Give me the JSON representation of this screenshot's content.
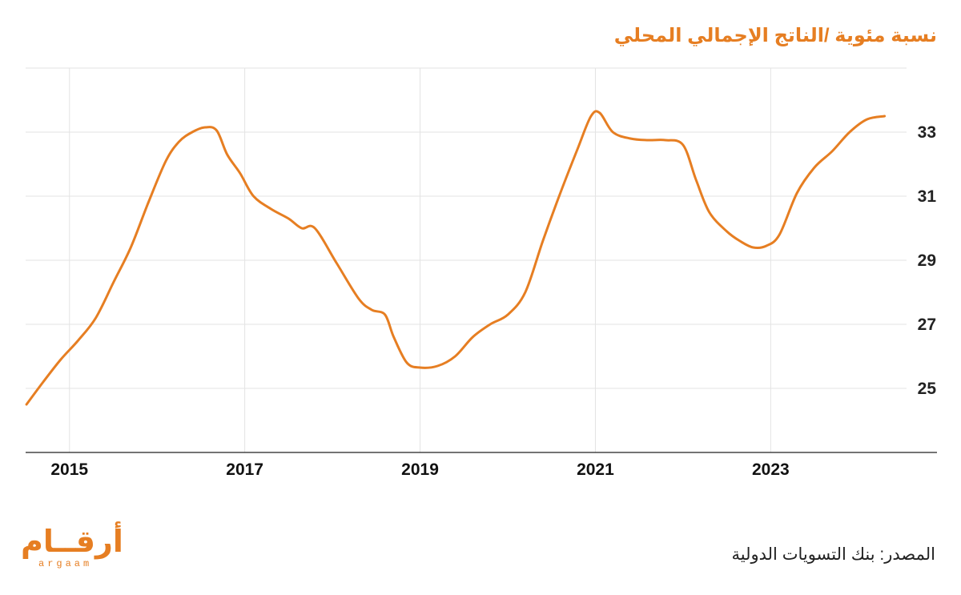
{
  "chart_data": {
    "type": "line",
    "title": "نسبة مئوية /الناتج الإجمالي المحلي",
    "series": [
      {
        "color": "#e67e22",
        "points": [
          [
            2014.51,
            24.5
          ],
          [
            2014.7,
            25.2
          ],
          [
            2014.9,
            25.9
          ],
          [
            2015.1,
            26.5
          ],
          [
            2015.3,
            27.2
          ],
          [
            2015.5,
            28.3
          ],
          [
            2015.7,
            29.4
          ],
          [
            2015.9,
            30.8
          ],
          [
            2016.1,
            32.1
          ],
          [
            2016.25,
            32.7
          ],
          [
            2016.4,
            33.0
          ],
          [
            2016.55,
            33.15
          ],
          [
            2016.68,
            33.05
          ],
          [
            2016.8,
            32.3
          ],
          [
            2016.95,
            31.7
          ],
          [
            2017.1,
            31.0
          ],
          [
            2017.3,
            30.6
          ],
          [
            2017.5,
            30.3
          ],
          [
            2017.65,
            30.0
          ],
          [
            2017.8,
            30.0
          ],
          [
            2018.05,
            28.9
          ],
          [
            2018.3,
            27.8
          ],
          [
            2018.45,
            27.45
          ],
          [
            2018.6,
            27.3
          ],
          [
            2018.7,
            26.6
          ],
          [
            2018.85,
            25.8
          ],
          [
            2019.0,
            25.65
          ],
          [
            2019.2,
            25.7
          ],
          [
            2019.4,
            26.0
          ],
          [
            2019.6,
            26.6
          ],
          [
            2019.8,
            27.0
          ],
          [
            2020.0,
            27.3
          ],
          [
            2020.2,
            28.0
          ],
          [
            2020.4,
            29.6
          ],
          [
            2020.6,
            31.1
          ],
          [
            2020.8,
            32.5
          ],
          [
            2020.95,
            33.5
          ],
          [
            2021.05,
            33.6
          ],
          [
            2021.2,
            33.0
          ],
          [
            2021.4,
            32.8
          ],
          [
            2021.6,
            32.75
          ],
          [
            2021.8,
            32.75
          ],
          [
            2022.0,
            32.6
          ],
          [
            2022.15,
            31.5
          ],
          [
            2022.3,
            30.5
          ],
          [
            2022.5,
            29.9
          ],
          [
            2022.65,
            29.6
          ],
          [
            2022.8,
            29.4
          ],
          [
            2022.95,
            29.45
          ],
          [
            2023.1,
            29.8
          ],
          [
            2023.3,
            31.1
          ],
          [
            2023.5,
            31.9
          ],
          [
            2023.7,
            32.4
          ],
          [
            2023.9,
            33.0
          ],
          [
            2024.1,
            33.4
          ],
          [
            2024.3,
            33.5
          ]
        ]
      }
    ],
    "xlim": [
      2014.5,
      2024.55
    ],
    "ylim": [
      23.0,
      35.0
    ],
    "xticks": [
      2015,
      2017,
      2019,
      2021,
      2023
    ],
    "yticks": [
      25,
      27,
      29,
      31,
      33
    ],
    "grid": true,
    "y_axis_side": "right"
  },
  "source_text": "المصدر: بنك التسويات الدولية",
  "logo": {
    "arabic": "أرقــام",
    "latin": "argaam"
  }
}
